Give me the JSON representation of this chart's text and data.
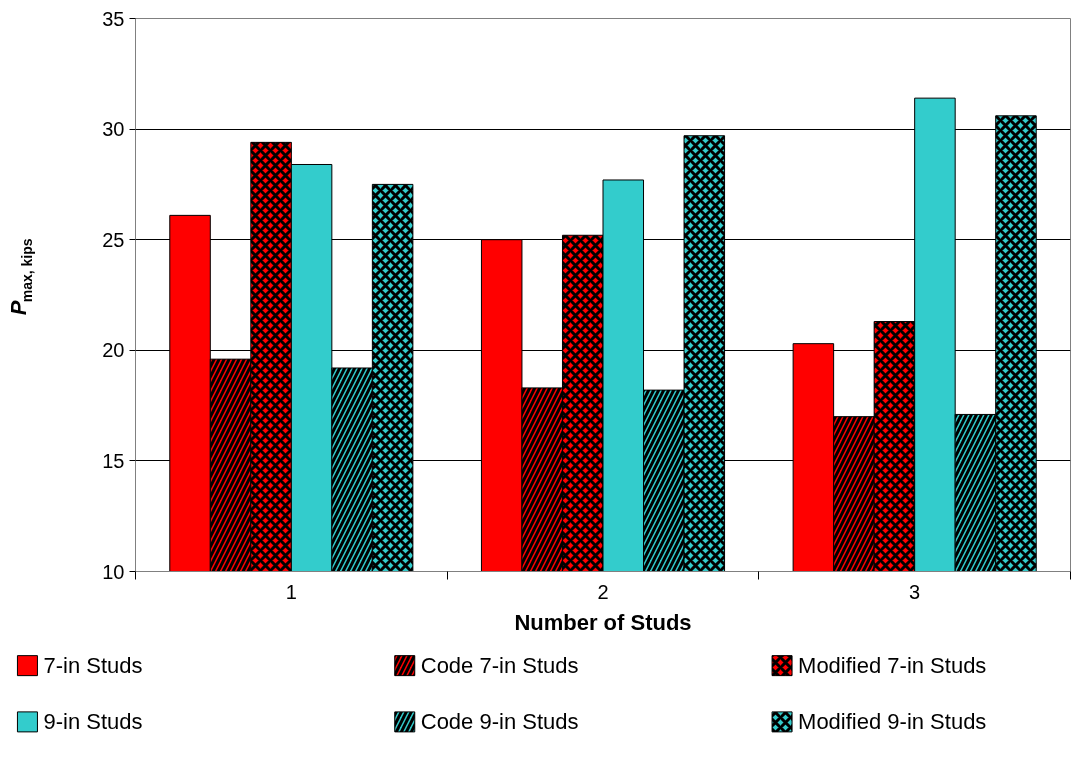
{
  "chart_data": {
    "type": "bar",
    "xlabel": "Number of Studs",
    "ylabel": "P$_{max, kips}$",
    "categories": [
      "1",
      "2",
      "3"
    ],
    "series": [
      {
        "name": "7-in Studs",
        "color": "#ff0000",
        "values": [
          26.1,
          25.0,
          20.3
        ]
      },
      {
        "name": "Code 7-in Studs",
        "color": "#ff0000",
        "values": [
          19.6,
          18.3,
          17.0
        ]
      },
      {
        "name": "Modified 7-in Studs",
        "color": "#ff0000",
        "values": [
          29.4,
          25.2,
          21.3
        ]
      },
      {
        "name": "9-in Studs",
        "color": "#33cccc",
        "values": [
          28.4,
          27.7,
          31.4
        ]
      },
      {
        "name": "Code 9-in Studs",
        "color": "#33cccc",
        "values": [
          19.2,
          18.2,
          17.1
        ]
      },
      {
        "name": "Modified 9-in Studs",
        "color": "#33cccc",
        "values": [
          27.5,
          29.7,
          30.6
        ]
      }
    ],
    "ylim": [
      10,
      35
    ],
    "yticks": [
      10,
      15,
      20,
      25,
      30,
      35
    ],
    "grid": "y",
    "legend": "bottom"
  }
}
